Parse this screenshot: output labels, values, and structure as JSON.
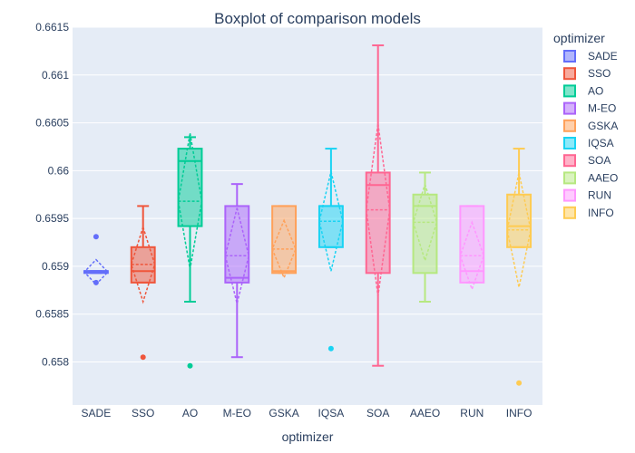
{
  "chart_data": {
    "type": "box",
    "title": "Boxplot of comparison models",
    "xlabel": "optimizer",
    "ylabel": "",
    "ylim": [
      0.65755,
      0.6615
    ],
    "yticks": [
      0.658,
      0.6585,
      0.659,
      0.6595,
      0.66,
      0.6605,
      0.661,
      0.6615
    ],
    "ytick_labels": [
      "0.658",
      "0.6585",
      "0.659",
      "0.6595",
      "0.66",
      "0.6605",
      "0.661",
      "0.6615"
    ],
    "grid": true,
    "legend_title": "optimizer",
    "legend_position": "right",
    "series": [
      {
        "name": "SADE",
        "color": "#636efa",
        "q1": 0.65893,
        "median": 0.65895,
        "q3": 0.65895,
        "lower": 0.65893,
        "upper": 0.65895,
        "mean": 0.65894,
        "sd": 0.00013,
        "outliers": [
          0.65931,
          0.65883
        ]
      },
      {
        "name": "SSO",
        "color": "#ef553b",
        "q1": 0.65883,
        "median": 0.65895,
        "q3": 0.6592,
        "lower": 0.65883,
        "upper": 0.65963,
        "mean": 0.65902,
        "sd": 0.00039,
        "outliers": [
          0.65805
        ]
      },
      {
        "name": "AO",
        "color": "#00cc96",
        "q1": 0.65942,
        "median": 0.6601,
        "q3": 0.66023,
        "lower": 0.65863,
        "upper": 0.66035,
        "mean": 0.65968,
        "sd": 0.00071,
        "outliers": [
          0.65796
        ]
      },
      {
        "name": "M-EO",
        "color": "#ab63fa",
        "q1": 0.65883,
        "median": 0.65888,
        "q3": 0.65963,
        "lower": 0.65805,
        "upper": 0.65986,
        "mean": 0.65911,
        "sd": 0.0005,
        "outliers": []
      },
      {
        "name": "GSKA",
        "color": "#ffa15a",
        "q1": 0.65893,
        "median": 0.65895,
        "q3": 0.65963,
        "lower": 0.65893,
        "upper": 0.65963,
        "mean": 0.65918,
        "sd": 0.0003,
        "outliers": []
      },
      {
        "name": "IQSA",
        "color": "#19d3f3",
        "q1": 0.6592,
        "median": 0.65963,
        "q3": 0.65963,
        "lower": 0.6592,
        "upper": 0.66023,
        "mean": 0.65947,
        "sd": 0.00052,
        "outliers": [
          0.65814
        ]
      },
      {
        "name": "SOA",
        "color": "#ff6692",
        "q1": 0.65893,
        "median": 0.65985,
        "q3": 0.65998,
        "lower": 0.65796,
        "upper": 0.66131,
        "mean": 0.65959,
        "sd": 0.0009,
        "outliers": []
      },
      {
        "name": "AAEO",
        "color": "#b6e880",
        "q1": 0.65893,
        "median": 0.65963,
        "q3": 0.65975,
        "lower": 0.65863,
        "upper": 0.65998,
        "mean": 0.65946,
        "sd": 0.0004,
        "outliers": []
      },
      {
        "name": "RUN",
        "color": "#ff97ff",
        "q1": 0.65883,
        "median": 0.65895,
        "q3": 0.65963,
        "lower": 0.65883,
        "upper": 0.65963,
        "mean": 0.65911,
        "sd": 0.00035,
        "outliers": []
      },
      {
        "name": "INFO",
        "color": "#fecb52",
        "q1": 0.6592,
        "median": 0.65942,
        "q3": 0.65975,
        "lower": 0.6592,
        "upper": 0.66023,
        "mean": 0.65938,
        "sd": 0.0006,
        "outliers": [
          0.65778
        ]
      }
    ]
  }
}
